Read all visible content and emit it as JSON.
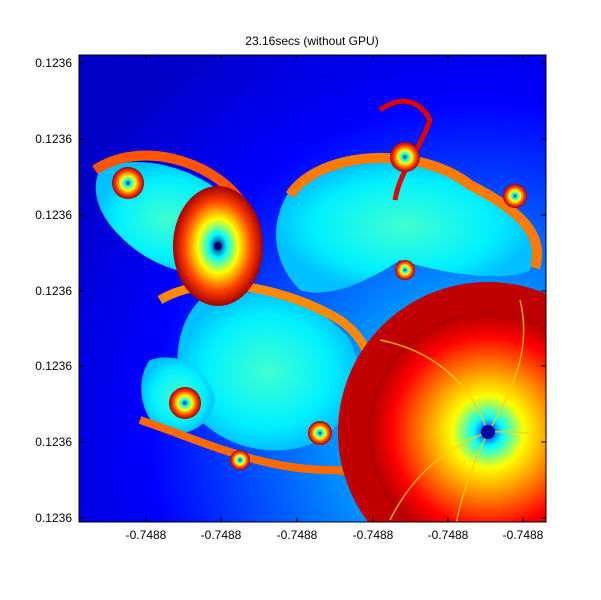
{
  "chart_data": {
    "type": "heatmap",
    "title": "23.16secs (without GPU)",
    "xlabel": "",
    "ylabel": "",
    "x_tick_labels": [
      "-0.7488",
      "-0.7488",
      "-0.7488",
      "-0.7488",
      "-0.7488",
      "-0.7488"
    ],
    "y_tick_labels": [
      "0.1236",
      "0.1236",
      "0.1236",
      "0.1236",
      "0.1236",
      "0.1236",
      "0.1236"
    ],
    "colormap": [
      "#00008f",
      "#0000ff",
      "#0080ff",
      "#00ffff",
      "#80ff80",
      "#ffff00",
      "#ff8000",
      "#ff0000",
      "#800000"
    ],
    "grid": false
  }
}
